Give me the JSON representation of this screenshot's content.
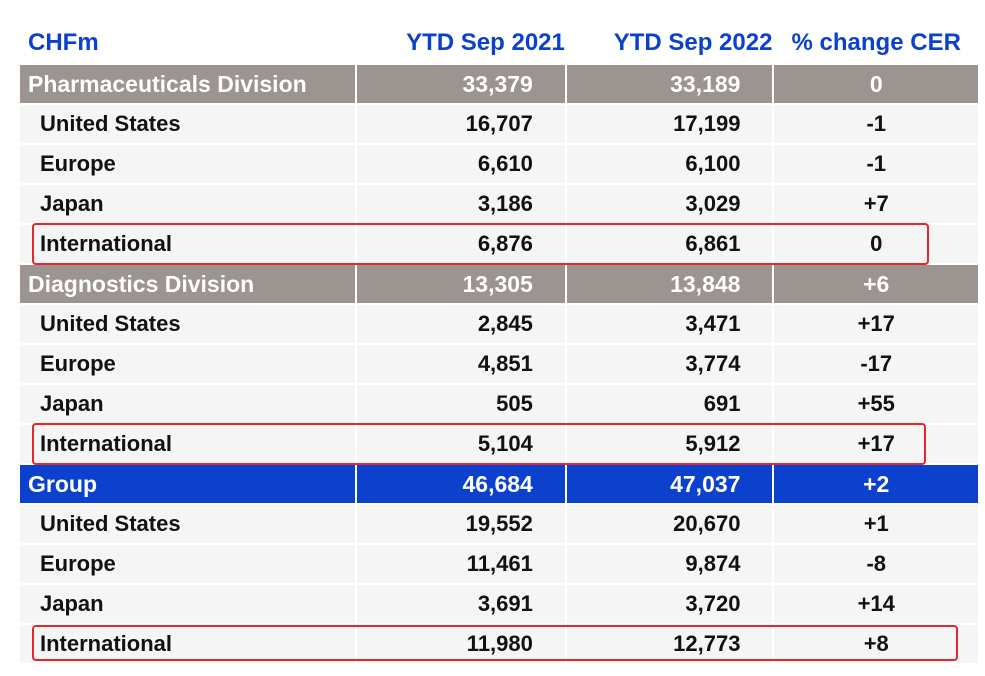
{
  "headers": [
    "CHFm",
    "YTD Sep 2021",
    "YTD Sep 2022",
    "% change CER"
  ],
  "sections": [
    {
      "name": "Pharmaceuticals Division",
      "v2021": "33,379",
      "v2022": "33,189",
      "change": "0",
      "rows": [
        {
          "region": "United States",
          "v2021": "16,707",
          "v2022": "17,199",
          "change": "-1"
        },
        {
          "region": "Europe",
          "v2021": "6,610",
          "v2022": "6,100",
          "change": "-1"
        },
        {
          "region": "Japan",
          "v2021": "3,186",
          "v2022": "3,029",
          "change": "+7"
        },
        {
          "region": "International",
          "v2021": "6,876",
          "v2022": "6,861",
          "change": "0"
        }
      ]
    },
    {
      "name": "Diagnostics Division",
      "v2021": "13,305",
      "v2022": "13,848",
      "change": "+6",
      "rows": [
        {
          "region": "United States",
          "v2021": "2,845",
          "v2022": "3,471",
          "change": "+17"
        },
        {
          "region": "Europe",
          "v2021": "4,851",
          "v2022": "3,774",
          "change": "-17"
        },
        {
          "region": "Japan",
          "v2021": "505",
          "v2022": "691",
          "change": "+55"
        },
        {
          "region": "International",
          "v2021": "5,104",
          "v2022": "5,912",
          "change": "+17"
        }
      ]
    },
    {
      "name": "Group",
      "v2021": "46,684",
      "v2022": "47,037",
      "change": "+2",
      "rows": [
        {
          "region": "United States",
          "v2021": "19,552",
          "v2022": "20,670",
          "change": "+1"
        },
        {
          "region": "Europe",
          "v2021": "11,461",
          "v2022": "9,874",
          "change": "-8"
        },
        {
          "region": "Japan",
          "v2021": "3,691",
          "v2022": "3,720",
          "change": "+14"
        },
        {
          "region": "International",
          "v2021": "11,980",
          "v2022": "12,773",
          "change": "+8"
        }
      ]
    }
  ],
  "colors": {
    "accent_blue": "#0b41cd",
    "division_gray": "#9b9491",
    "highlight_red": "#e8262a"
  }
}
